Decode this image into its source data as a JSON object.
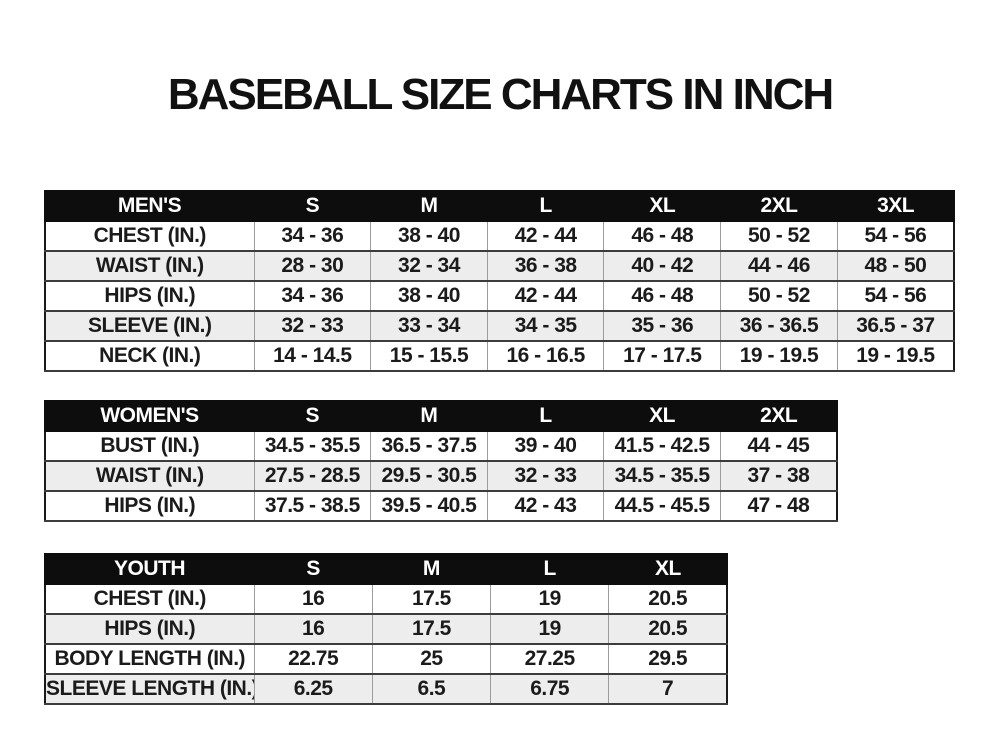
{
  "title": "BASEBALL SIZE CHARTS IN INCH",
  "colors": {
    "header_bg": "#0d0d0d",
    "header_text": "#ffffff",
    "row_bg": "#ffffff",
    "row_stripe_bg": "#ededed",
    "text": "#1b1b1b",
    "border_dark": "#1a1a1a",
    "border_light": "#9c9c9c"
  },
  "chart_data": [
    {
      "type": "table",
      "name": "mens-size-chart",
      "columns": [
        "MEN'S",
        "S",
        "M",
        "L",
        "XL",
        "2XL",
        "3XL"
      ],
      "rows": [
        [
          "CHEST (IN.)",
          "34 - 36",
          "38 - 40",
          "42 - 44",
          "46 - 48",
          "50 - 52",
          "54 - 56"
        ],
        [
          "WAIST (IN.)",
          "28 - 30",
          "32 - 34",
          "36 - 38",
          "40 - 42",
          "44 - 46",
          "48 - 50"
        ],
        [
          "HIPS (IN.)",
          "34 - 36",
          "38 - 40",
          "42 - 44",
          "46 - 48",
          "50 - 52",
          "54 - 56"
        ],
        [
          "SLEEVE (IN.)",
          "32 - 33",
          "33 - 34",
          "34 - 35",
          "35 - 36",
          "36 - 36.5",
          "36.5 - 37"
        ],
        [
          "NECK (IN.)",
          "14 - 14.5",
          "15 - 15.5",
          "16 - 16.5",
          "17 - 17.5",
          "19 - 19.5",
          "19 - 19.5"
        ]
      ]
    },
    {
      "type": "table",
      "name": "womens-size-chart",
      "columns": [
        "WOMEN'S",
        "S",
        "M",
        "L",
        "XL",
        "2XL"
      ],
      "rows": [
        [
          "BUST (IN.)",
          "34.5 - 35.5",
          "36.5 - 37.5",
          "39 - 40",
          "41.5 - 42.5",
          "44 - 45"
        ],
        [
          "WAIST (IN.)",
          "27.5 - 28.5",
          "29.5 - 30.5",
          "32 - 33",
          "34.5 - 35.5",
          "37 - 38"
        ],
        [
          "HIPS (IN.)",
          "37.5 - 38.5",
          "39.5 - 40.5",
          "42 - 43",
          "44.5 - 45.5",
          "47 - 48"
        ]
      ]
    },
    {
      "type": "table",
      "name": "youth-size-chart",
      "columns": [
        "YOUTH",
        "S",
        "M",
        "L",
        "XL"
      ],
      "rows": [
        [
          "CHEST (IN.)",
          "16",
          "17.5",
          "19",
          "20.5"
        ],
        [
          "HIPS (IN.)",
          "16",
          "17.5",
          "19",
          "20.5"
        ],
        [
          "BODY LENGTH (IN.)",
          "22.75",
          "25",
          "27.25",
          "29.5"
        ],
        [
          "SLEEVE LENGTH (IN.)",
          "6.25",
          "6.5",
          "6.75",
          "7"
        ]
      ]
    }
  ]
}
